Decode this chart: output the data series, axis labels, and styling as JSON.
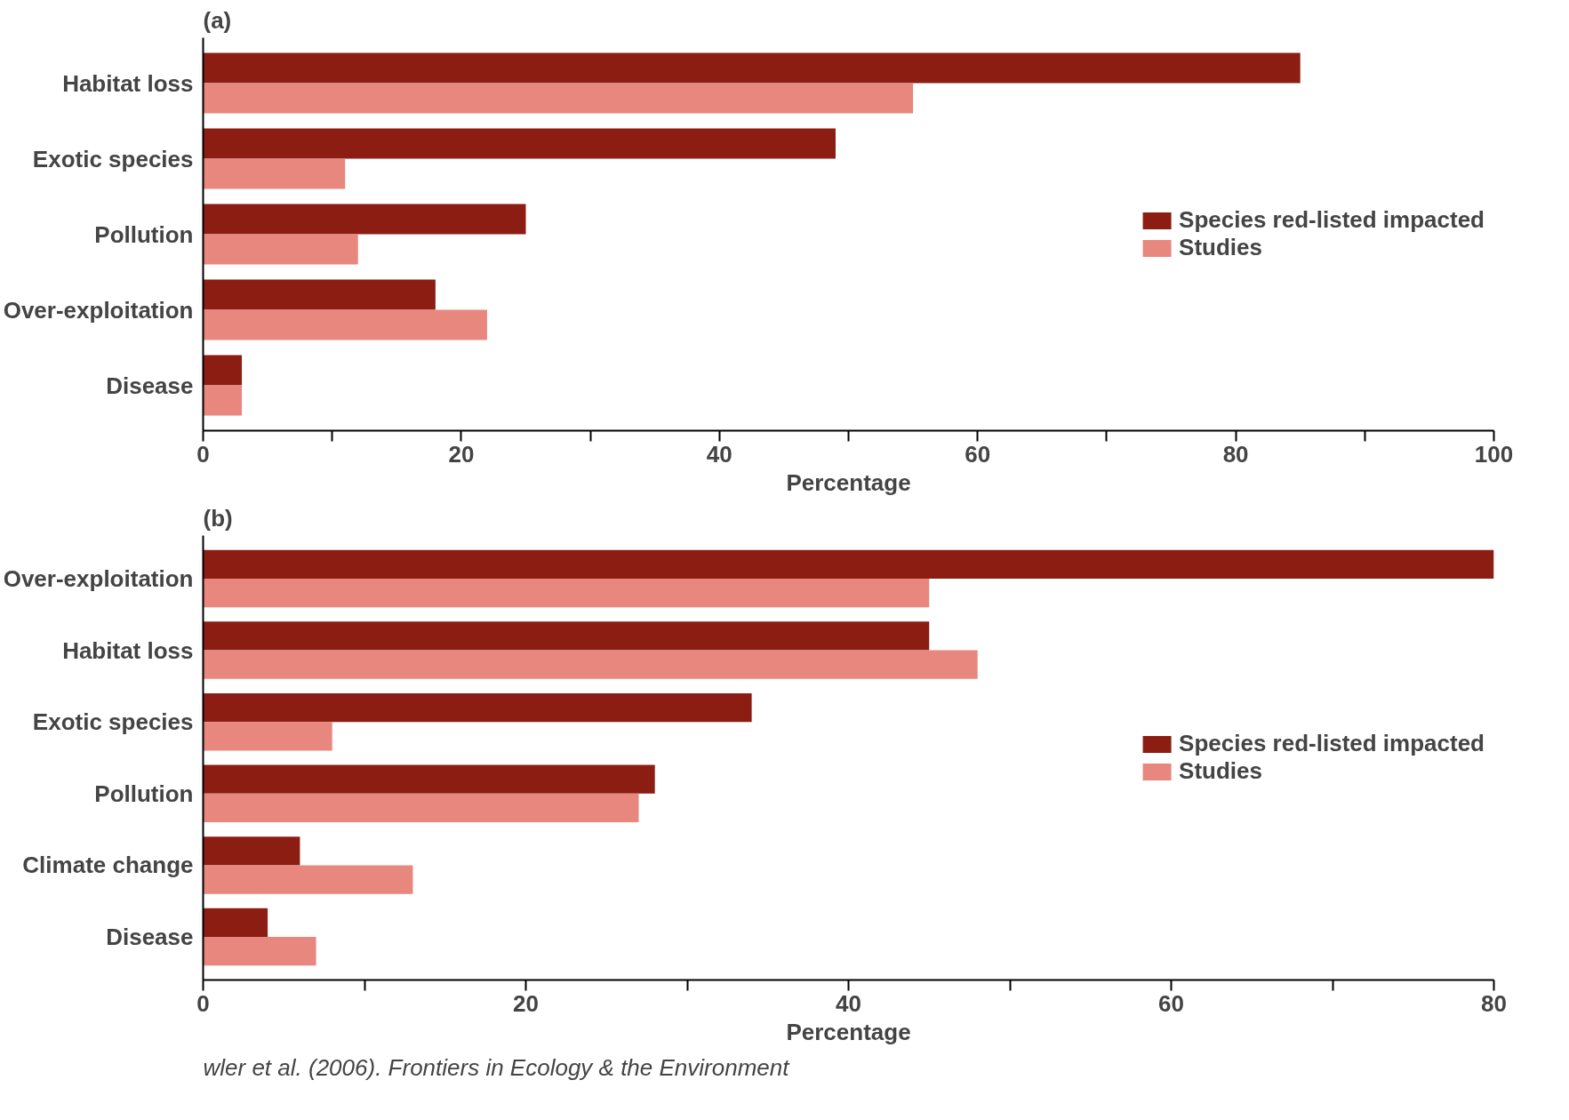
{
  "chart_data": [
    {
      "type": "bar",
      "orientation": "horizontal",
      "title": "(a)",
      "xlabel": "Percentage",
      "categories": [
        "Habitat loss",
        "Exotic species",
        "Pollution",
        "Over-exploitation",
        "Disease"
      ],
      "series": [
        {
          "name": "Species red-listed impacted",
          "color": "#8b1d12",
          "values": [
            85,
            49,
            25,
            18,
            3
          ]
        },
        {
          "name": "Studies",
          "color": "#e8877e",
          "values": [
            55,
            11,
            12,
            22,
            3
          ]
        }
      ],
      "xlim": [
        0,
        100
      ],
      "xticks": [
        0,
        {
          "value": 10,
          "label": null
        },
        20,
        {
          "value": 30,
          "label": null
        },
        40,
        {
          "value": 50,
          "label": null
        },
        60,
        {
          "value": 70,
          "label": null
        },
        80,
        {
          "value": 90,
          "label": null
        },
        100
      ],
      "grid": false,
      "legend": "right"
    },
    {
      "type": "bar",
      "orientation": "horizontal",
      "title": "(b)",
      "xlabel": "Percentage",
      "categories": [
        "Over-exploitation",
        "Habitat loss",
        "Exotic species",
        "Pollution",
        "Climate change",
        "Disease"
      ],
      "series": [
        {
          "name": "Species red-listed impacted",
          "color": "#8b1d12",
          "values": [
            80,
            45,
            34,
            28,
            6,
            4
          ]
        },
        {
          "name": "Studies",
          "color": "#e8877e",
          "values": [
            45,
            48,
            8,
            27,
            13,
            7
          ]
        }
      ],
      "xlim": [
        0,
        80
      ],
      "xticks": [
        0,
        {
          "value": 10,
          "label": null
        },
        20,
        {
          "value": 30,
          "label": null
        },
        40,
        {
          "value": 50,
          "label": null
        },
        60,
        {
          "value": 70,
          "label": null
        },
        80
      ],
      "grid": false,
      "legend": "right",
      "annotations": [
        "wler et al. (2006). Frontiers in Ecology & the Environment"
      ]
    }
  ]
}
